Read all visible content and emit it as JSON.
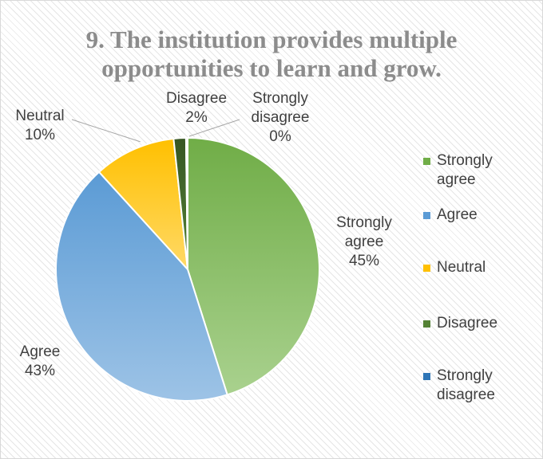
{
  "chart_data": {
    "type": "pie",
    "title": "9. The institution provides multiple opportunities to learn and grow.",
    "slices": [
      {
        "label": "Strongly agree",
        "value": 45,
        "display_label": "Strongly agree",
        "display_pct": "45%",
        "color_light": "#a9d18e",
        "color_dark": "#70ad47",
        "legend_color": "#70ad47"
      },
      {
        "label": "Agree",
        "value": 43,
        "display_label": "Agree",
        "display_pct": "43%",
        "color_light": "#9dc3e6",
        "color_dark": "#5b9bd5",
        "legend_color": "#5b9bd5"
      },
      {
        "label": "Neutral",
        "value": 10,
        "display_label": "Neutral",
        "display_pct": "10%",
        "color_light": "#ffd966",
        "color_dark": "#ffc000",
        "legend_color": "#ffc000"
      },
      {
        "label": "Disagree",
        "value": 1.5,
        "display_label": "Disagree",
        "display_pct": "2%",
        "color_light": "#548235",
        "color_dark": "#375623",
        "legend_color": "#548235"
      },
      {
        "label": "Strongly disagree",
        "value": 0.2,
        "display_label": "Strongly disagree",
        "display_pct": "0%",
        "color_light": "#2e75b6",
        "color_dark": "#1f4e79",
        "legend_color": "#2e75b6"
      }
    ],
    "legend_position": "right"
  }
}
